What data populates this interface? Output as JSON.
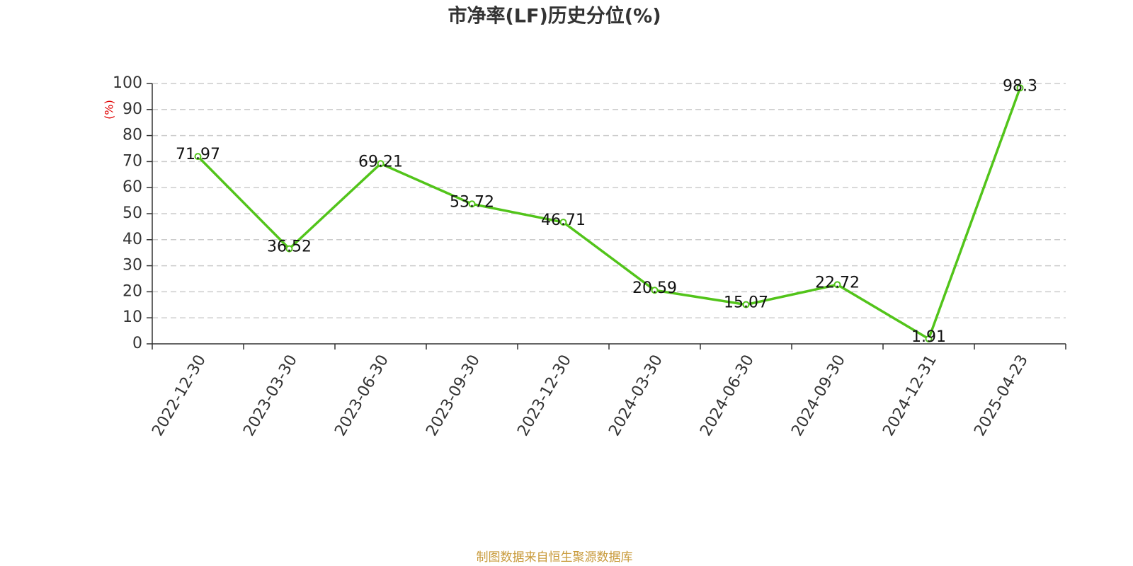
{
  "chart_data": {
    "type": "line",
    "title": "市净率(LF)历史分位(%)",
    "y_label": "(%)",
    "categories": [
      "2022-12-30",
      "2023-03-30",
      "2023-06-30",
      "2023-09-30",
      "2023-12-30",
      "2024-03-30",
      "2024-06-30",
      "2024-09-30",
      "2024-12-31",
      "2025-04-23"
    ],
    "values": [
      71.97,
      36.52,
      69.21,
      53.72,
      46.71,
      20.59,
      15.07,
      22.72,
      1.91,
      98.3
    ],
    "color": "#52c41a",
    "ylim": [
      0,
      100
    ],
    "yticks": [
      0,
      10,
      20,
      30,
      40,
      50,
      60,
      70,
      80,
      90,
      100
    ],
    "grid": true,
    "source": "制图数据来自恒生聚源数据库"
  }
}
